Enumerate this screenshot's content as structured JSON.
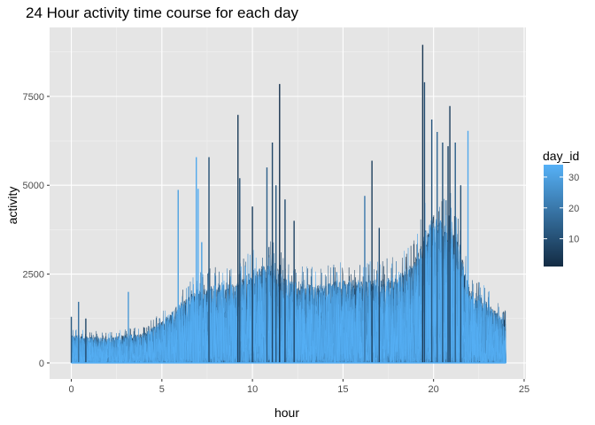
{
  "chart_data": {
    "type": "line",
    "title": "24 Hour activity time course for each day",
    "xlabel": "hour",
    "ylabel": "activity",
    "xlim": [
      -1.2,
      25.1
    ],
    "ylim": [
      -450,
      9440
    ],
    "x_ticks": [
      0,
      5,
      10,
      15,
      20,
      25
    ],
    "x_tick_labels": [
      "0",
      "5",
      "10",
      "15",
      "20",
      "25"
    ],
    "y_ticks": [
      0,
      2500,
      5000,
      7500
    ],
    "y_tick_labels": [
      "0",
      "2500",
      "5000",
      "7500"
    ],
    "grid": true,
    "panel_background": "#e5e5e5",
    "grid_color": "#ffffff",
    "legend": {
      "title": "day_id",
      "position": "right",
      "ticks": [
        10,
        20,
        30
      ],
      "tick_labels": [
        "10",
        "20",
        "30"
      ],
      "range": [
        1,
        34
      ],
      "color_low": "#132b43",
      "color_high": "#56b1f7"
    },
    "color_scale": {
      "low": "#132b43",
      "high": "#56b1f7"
    },
    "x_range": [
      0,
      24
    ],
    "resolution_hours": 0.0167,
    "envelope_baseline": [
      [
        0,
        600
      ],
      [
        2,
        550
      ],
      [
        4,
        650
      ],
      [
        5,
        900
      ],
      [
        6,
        1300
      ],
      [
        7,
        1600
      ],
      [
        8,
        1700
      ],
      [
        9,
        1700
      ],
      [
        10,
        2000
      ],
      [
        11,
        2200
      ],
      [
        12,
        1800
      ],
      [
        13,
        1700
      ],
      [
        14,
        1700
      ],
      [
        15,
        1800
      ],
      [
        16,
        1800
      ],
      [
        17,
        1800
      ],
      [
        18,
        1900
      ],
      [
        19,
        2200
      ],
      [
        19.5,
        2800
      ],
      [
        20,
        3200
      ],
      [
        21,
        3000
      ],
      [
        21.5,
        2400
      ],
      [
        22,
        1600
      ],
      [
        23,
        1300
      ],
      [
        24,
        900
      ]
    ],
    "peaks": [
      {
        "x": 0.0,
        "y": 1300,
        "day": 12
      },
      {
        "x": 0.4,
        "y": 1720,
        "day": 18
      },
      {
        "x": 0.8,
        "y": 1250,
        "day": 8
      },
      {
        "x": 3.15,
        "y": 2000,
        "day": 28
      },
      {
        "x": 5.9,
        "y": 4870,
        "day": 30
      },
      {
        "x": 6.9,
        "y": 5790,
        "day": 32
      },
      {
        "x": 7.0,
        "y": 4900,
        "day": 33
      },
      {
        "x": 7.2,
        "y": 3400,
        "day": 30
      },
      {
        "x": 7.6,
        "y": 5790,
        "day": 10
      },
      {
        "x": 9.2,
        "y": 6980,
        "day": 5
      },
      {
        "x": 9.3,
        "y": 5200,
        "day": 10
      },
      {
        "x": 10.0,
        "y": 4400,
        "day": 6
      },
      {
        "x": 10.8,
        "y": 5500,
        "day": 14
      },
      {
        "x": 11.1,
        "y": 6200,
        "day": 8
      },
      {
        "x": 11.3,
        "y": 5000,
        "day": 12
      },
      {
        "x": 11.5,
        "y": 7850,
        "day": 3
      },
      {
        "x": 11.8,
        "y": 4600,
        "day": 9
      },
      {
        "x": 12.3,
        "y": 4000,
        "day": 7
      },
      {
        "x": 16.2,
        "y": 4700,
        "day": 20
      },
      {
        "x": 16.6,
        "y": 5690,
        "day": 6
      },
      {
        "x": 17.0,
        "y": 3800,
        "day": 9
      },
      {
        "x": 19.4,
        "y": 8950,
        "day": 4
      },
      {
        "x": 19.5,
        "y": 7900,
        "day": 9
      },
      {
        "x": 19.9,
        "y": 6850,
        "day": 12
      },
      {
        "x": 20.2,
        "y": 6500,
        "day": 16
      },
      {
        "x": 20.5,
        "y": 6200,
        "day": 11
      },
      {
        "x": 20.8,
        "y": 6100,
        "day": 8
      },
      {
        "x": 20.9,
        "y": 7230,
        "day": 6
      },
      {
        "x": 21.2,
        "y": 6200,
        "day": 14
      },
      {
        "x": 21.5,
        "y": 5000,
        "day": 10
      },
      {
        "x": 21.9,
        "y": 6530,
        "day": 32
      }
    ]
  }
}
